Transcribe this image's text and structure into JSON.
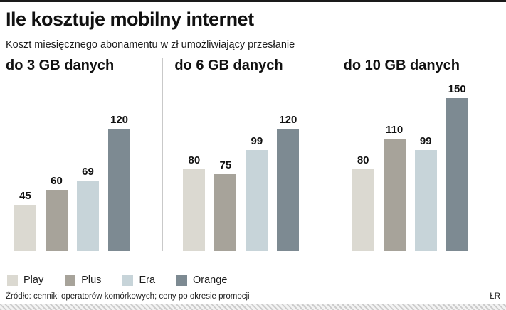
{
  "page": {
    "title": "Ile kosztuje mobilny internet",
    "subtitle": "Koszt miesięcznego abonamentu w zł umożliwiający przesłanie",
    "source": "Źródło: cenniki operatorów komórkowych; ceny po okresie promocji",
    "credit": "ŁR"
  },
  "colors": {
    "series": [
      "#dbd9d1",
      "#a7a39a",
      "#c7d4d9",
      "#7d8a92"
    ],
    "divider": "#c9c9c9",
    "top_rule": "#1a1a1a"
  },
  "chart_data": {
    "type": "bar",
    "title": "Ile kosztuje mobilny internet",
    "subtitle": "Koszt miesięcznego abonamentu w zł umożliwiający przesłanie",
    "series_names": [
      "Play",
      "Plus",
      "Era",
      "Orange"
    ],
    "groups": [
      {
        "label": "do 3 GB danych",
        "values": [
          45,
          60,
          69,
          120
        ]
      },
      {
        "label": "do 6 GB danych",
        "values": [
          80,
          75,
          99,
          120
        ]
      },
      {
        "label": "do 10 GB danych",
        "values": [
          80,
          110,
          99,
          150
        ]
      }
    ],
    "ylim": [
      0,
      150
    ],
    "grid": false,
    "value_labels": true,
    "legend": [
      "Play",
      "Plus",
      "Era",
      "Orange"
    ],
    "legend_position": "bottom"
  }
}
